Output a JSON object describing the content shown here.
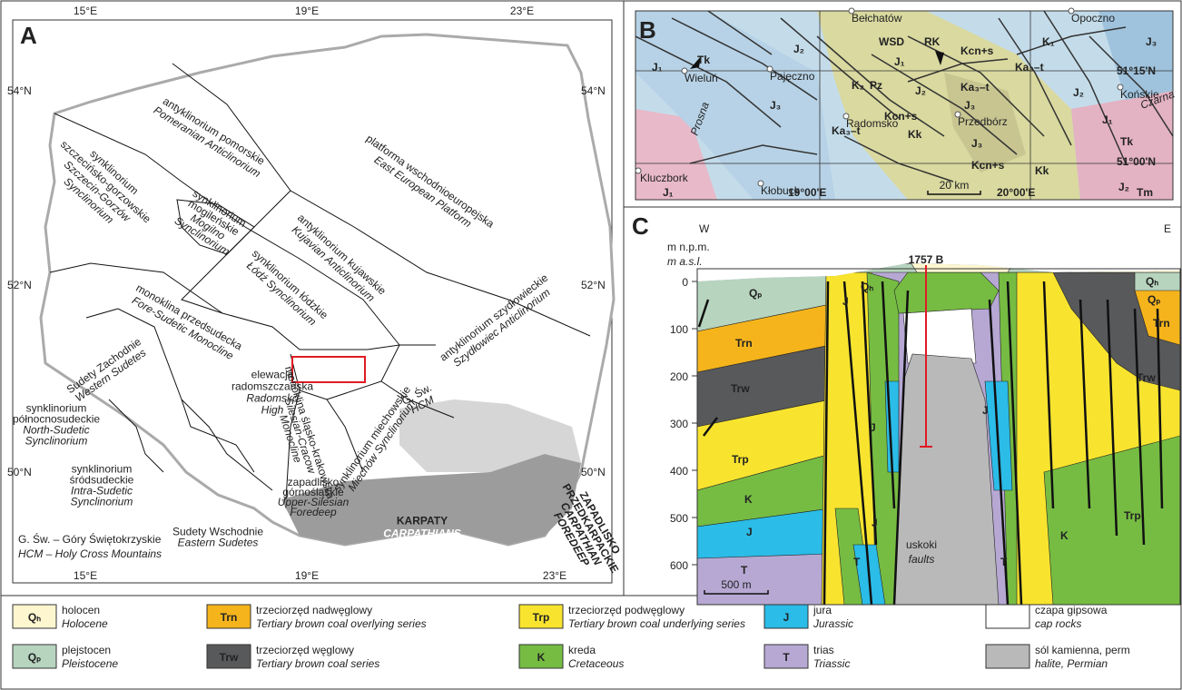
{
  "panel_a": {
    "letter": "A",
    "lon_top": [
      "15°E",
      "19°E",
      "23°E"
    ],
    "lon_bottom": [
      "15°E",
      "19°E",
      "23°E"
    ],
    "lat_left": [
      "54°N",
      "52°N",
      "50°N"
    ],
    "lat_right": [
      "54°N",
      "52°N",
      "50°N"
    ],
    "regions": [
      {
        "pl": [
          "antyklinorium pomorskie"
        ],
        "en": [
          "Pomeranian Anticlinorium"
        ]
      },
      {
        "pl": [
          "platforma wschodnioeuropejska"
        ],
        "en": [
          "East European Platform"
        ]
      },
      {
        "pl": [
          "synklinorium",
          "szczecińsko-gorzowskie"
        ],
        "en": [
          "Szczecin-Gorzów",
          "Synclinorium"
        ]
      },
      {
        "pl": [
          "synklinorium",
          "mogileńskie"
        ],
        "en": [
          "Mogilno",
          "Synclinorium"
        ]
      },
      {
        "pl": [
          "antyklinorium kujawskie"
        ],
        "en": [
          "Kujavian Anticlinorium"
        ]
      },
      {
        "pl": [
          "synklinorium łódzkie"
        ],
        "en": [
          "Łódź Synclinorium"
        ]
      },
      {
        "pl": [
          "monoklina przedsudecka"
        ],
        "en": [
          "Fore-Sudetic Monocline"
        ]
      },
      {
        "pl": [
          "Sudety Zachodnie"
        ],
        "en": [
          "Western Sudetes"
        ]
      },
      {
        "pl": [
          "elewacja",
          "radomszczańska"
        ],
        "en": [
          "Radomsko",
          "High"
        ]
      },
      {
        "pl": [
          "antyklinorium szydłowieckie"
        ],
        "en": [
          "Szydłowiec Anticlinorium"
        ]
      },
      {
        "pl": [
          "synklinorium miechowskie"
        ],
        "en": [
          "Miechów Synclinorium"
        ]
      },
      {
        "pl": [
          "monoklina śląsko-krakowska"
        ],
        "en": [
          "Silesian-Cracow",
          "Monocline"
        ]
      },
      {
        "pl": [
          "zapadlisko",
          "górnośląskie"
        ],
        "en": [
          "Upper-Silesian",
          "Foredeep"
        ]
      },
      {
        "pl": [
          "synklinorium",
          "północnosudeckie"
        ],
        "en": [
          "North-Sudetic",
          "Synclinorium"
        ]
      },
      {
        "pl": [
          "synklinorium",
          "śródsudeckie"
        ],
        "en": [
          "Intra-Sudetic",
          "Synclinorium"
        ]
      },
      {
        "pl": [
          "Sudety Wschodnie"
        ],
        "en": [
          "Eastern Sudetes"
        ]
      },
      {
        "pl": [
          "G. Św."
        ],
        "en": [
          "HCM"
        ]
      },
      {
        "pl": [
          "KARPATY"
        ],
        "en": [
          "CARPATHIANS"
        ]
      },
      {
        "pl": [
          "ZAPADLISKO",
          "PRZEDKARPACKIE"
        ],
        "en": [
          "CARPATHIAN",
          "FOREDEEP"
        ]
      }
    ],
    "note": [
      "G. Św. – Góry Świętokrzyskie",
      "HCM – Holy Cross Mountains"
    ]
  },
  "panel_b": {
    "letter": "B",
    "towns": [
      "Bełchatów",
      "Opoczno",
      "Wieluń",
      "Pajęczno",
      "Radomsko",
      "Przedbórz",
      "Końskie",
      "Kluczbork",
      "Kłobuck"
    ],
    "units": [
      "J₁",
      "Tk",
      "J₂",
      "J₃",
      "K₂",
      "Pz",
      "J₁",
      "J₂",
      "Kcn+s",
      "K₁",
      "Ka₃–t",
      "Ka₃–t",
      "J₃",
      "Kcn+s",
      "Kk",
      "J₃",
      "J₂",
      "J₁",
      "Tk",
      "Kcn+s",
      "Kk",
      "J₁",
      "J₂",
      "Tm",
      "J₃",
      "Ka₃–t"
    ],
    "sites": [
      "WSD",
      "RK"
    ],
    "rivers": [
      "Prosna",
      "Czarna"
    ],
    "lat": [
      "51°15'N",
      "51°00'N"
    ],
    "lon": [
      "19°00'E",
      "20°00'E"
    ],
    "scale": "20 km"
  },
  "panel_c": {
    "letter": "C",
    "west": "W",
    "east": "E",
    "axis_label": [
      "m n.p.m.",
      "m a.s.l."
    ],
    "ylim": [
      0,
      600
    ],
    "yticks": [
      0,
      100,
      200,
      300,
      400,
      500,
      600
    ],
    "borehole": {
      "label": "1757 B",
      "depth": 350
    },
    "units": [
      "Qₚ",
      "Qₕ",
      "Trn",
      "Trw",
      "Trp",
      "K",
      "J",
      "T",
      "J",
      "J",
      "J",
      "T",
      "J",
      "T",
      "Qₕ",
      "Qₚ",
      "Trn",
      "Trw",
      "Trp",
      "K"
    ],
    "faults": [
      "uskoki",
      "faults"
    ],
    "scale": "500 m"
  },
  "legend": [
    {
      "symbol": "Qₕ",
      "pl": "holocen",
      "en": "Holocene",
      "color": "#fdf6cf"
    },
    {
      "symbol": "Trn",
      "pl": "trzeciorzęd nadwęglowy",
      "en": "Tertiary brown coal overlying series",
      "color": "#f5b41c"
    },
    {
      "symbol": "Trp",
      "pl": "trzeciorzęd podwęglowy",
      "en": "Tertiary brown coal underlying series",
      "color": "#f8e42f"
    },
    {
      "symbol": "J",
      "pl": "jura",
      "en": "Jurassic",
      "color": "#2bbce8"
    },
    {
      "pl": "czapa gipsowa",
      "en": "cap rocks",
      "color": "#ffffff"
    },
    {
      "symbol": "Qₚ",
      "pl": "plejstocen",
      "en": "Pleistocene",
      "color": "#b7d4bf"
    },
    {
      "symbol": "Trw",
      "pl": "trzeciorzęd węglowy",
      "en": "Tertiary brown coal series",
      "color": "#58595b"
    },
    {
      "symbol": "K",
      "pl": "kreda",
      "en": "Cretaceous",
      "color": "#76bc43"
    },
    {
      "symbol": "T",
      "pl": "trias",
      "en": "Triassic",
      "color": "#b6a8d3"
    },
    {
      "pl": "sól kamienna, perm",
      "en": "halite, Permian",
      "color": "#b9b9b9"
    }
  ]
}
